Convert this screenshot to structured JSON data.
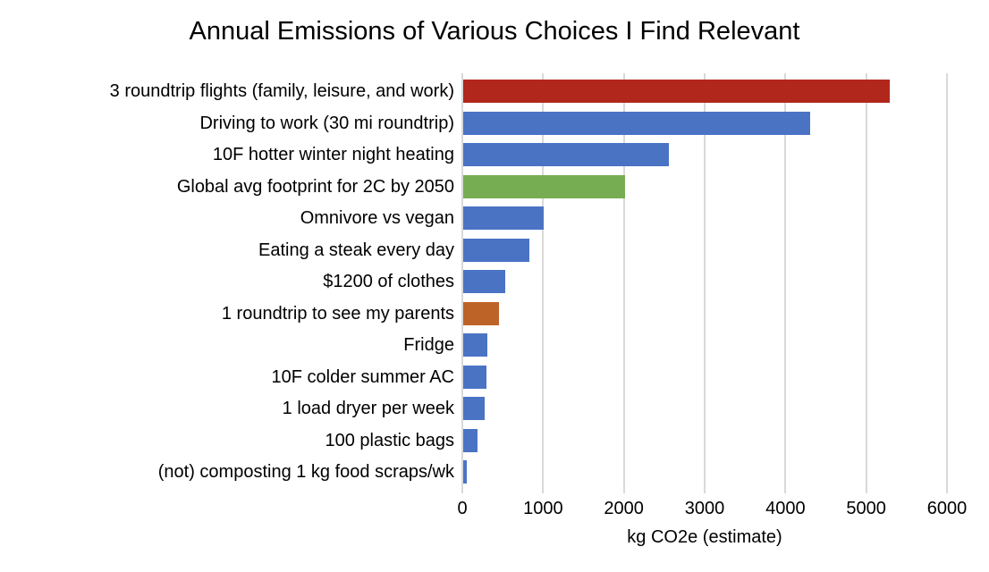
{
  "chart_data": {
    "type": "bar",
    "orientation": "horizontal",
    "title": "Annual Emissions of Various Choices I Find Relevant",
    "xlabel": "kg CO2e (estimate)",
    "ylabel": "",
    "xlim": [
      0,
      6000
    ],
    "xticks": [
      0,
      1000,
      2000,
      3000,
      4000,
      5000,
      6000
    ],
    "grid": "vertical-only",
    "legend": "none",
    "categories": [
      "3 roundtrip flights (family, leisure, and work)",
      "Driving to work (30 mi roundtrip)",
      "10F hotter winter night heating",
      "Global avg footprint for 2C by 2050",
      "Omnivore vs vegan",
      "Eating a steak every day",
      "$1200 of clothes",
      "1 roundtrip to see my parents",
      "Fridge",
      "10F colder summer AC",
      "1 load dryer per week",
      "100 plastic bags",
      "(not) composting 1 kg food scraps/wk"
    ],
    "values": [
      5280,
      4300,
      2550,
      2000,
      1000,
      820,
      520,
      445,
      300,
      290,
      270,
      175,
      40
    ],
    "bar_colors": [
      "#b2271c",
      "#4a73c4",
      "#4a73c4",
      "#77ad52",
      "#4a73c4",
      "#4a73c4",
      "#4a73c4",
      "#be6328",
      "#4a73c4",
      "#4a73c4",
      "#4a73c4",
      "#4a73c4",
      "#4a73c4"
    ],
    "colors": {
      "default_bar": "#4a73c4",
      "highlight_red": "#b2271c",
      "highlight_green": "#77ad52",
      "highlight_orange": "#be6328",
      "gridline": "#d9d9d9",
      "text": "#000000",
      "background": "#ffffff"
    }
  }
}
